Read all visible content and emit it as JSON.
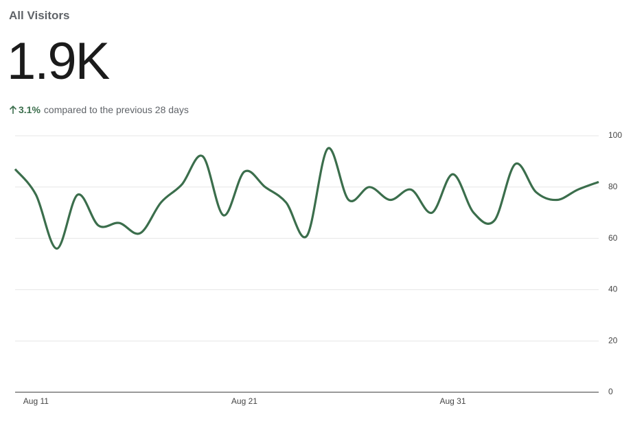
{
  "header": {
    "title": "All Visitors",
    "value": "1.9K",
    "change": "3.1%",
    "change_text": "compared to the previous 28 days"
  },
  "chart_data": {
    "type": "line",
    "categories": [
      null,
      "Aug 11",
      null,
      null,
      null,
      null,
      null,
      null,
      null,
      null,
      null,
      "Aug 21",
      null,
      null,
      null,
      null,
      null,
      null,
      null,
      null,
      null,
      "Aug 31",
      null,
      null,
      null,
      null,
      null,
      null,
      null
    ],
    "values": [
      87,
      77,
      56,
      77,
      65,
      66,
      62,
      74,
      81,
      92,
      69,
      86,
      80,
      74,
      61,
      95,
      75,
      80,
      75,
      79,
      70,
      85,
      70,
      67,
      89,
      78,
      75,
      79,
      82
    ],
    "color": "#3b6e4c",
    "ylim": [
      0,
      100
    ],
    "yticks": [
      0,
      20,
      40,
      60,
      80,
      100
    ],
    "grid": true
  }
}
